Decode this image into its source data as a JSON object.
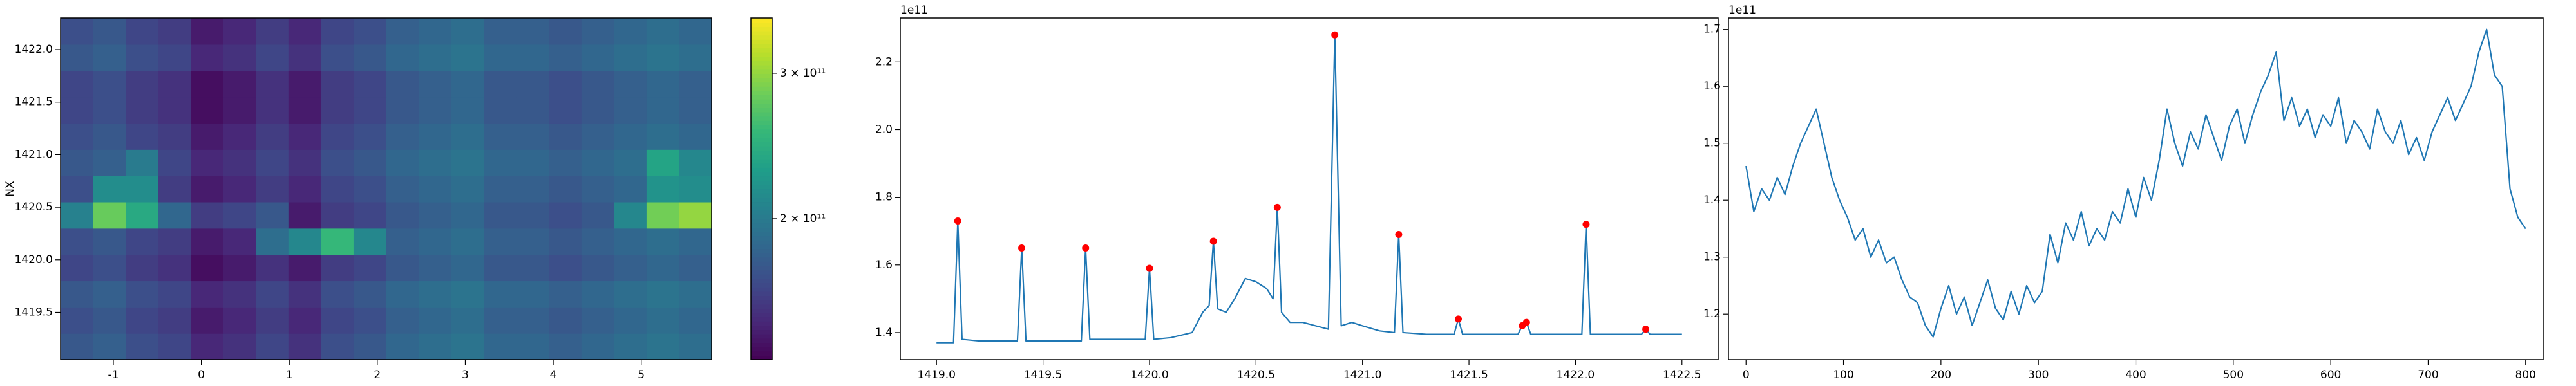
{
  "chart_data": [
    {
      "type": "heatmap",
      "ylabel": "NX",
      "xlim": [
        -1.6,
        5.8
      ],
      "ylim": [
        1419.05,
        1422.3
      ],
      "xticks": [
        -1,
        0,
        1,
        2,
        3,
        4,
        5
      ],
      "yticks": [
        1419.5,
        {
          "value": 1420,
          "label": "1420.0"
        },
        1420.5,
        {
          "value": 1421,
          "label": "1421.0"
        },
        1421.5,
        {
          "value": 1422,
          "label": "1422.0"
        }
      ],
      "x_edges": [
        -1.6,
        -1.23,
        -0.86,
        -0.49,
        -0.12,
        0.25,
        0.62,
        0.99,
        1.36,
        1.73,
        2.1,
        2.47,
        2.84,
        3.21,
        3.58,
        3.95,
        4.32,
        4.69,
        5.06,
        5.43,
        5.8
      ],
      "y_edges": [
        1419.05,
        1419.3,
        1419.55,
        1419.8,
        1420.05,
        1420.3,
        1420.55,
        1420.8,
        1421.05,
        1421.3,
        1421.55,
        1421.8,
        1422.05,
        1422.3
      ],
      "z": [
        [
          175000000000.0,
          180000000000.0,
          170000000000.0,
          165000000000.0,
          150000000000.0,
          155000000000.0,
          165000000000.0,
          155000000000.0,
          170000000000.0,
          175000000000.0,
          185000000000.0,
          190000000000.0,
          195000000000.0,
          185000000000.0,
          185000000000.0,
          180000000000.0,
          185000000000.0,
          190000000000.0,
          195000000000.0,
          190000000000.0
        ],
        [
          170000000000.0,
          175000000000.0,
          165000000000.0,
          160000000000.0,
          145000000000.0,
          150000000000.0,
          160000000000.0,
          150000000000.0,
          165000000000.0,
          170000000000.0,
          180000000000.0,
          185000000000.0,
          190000000000.0,
          180000000000.0,
          180000000000.0,
          175000000000.0,
          180000000000.0,
          185000000000.0,
          190000000000.0,
          185000000000.0
        ],
        [
          175000000000.0,
          180000000000.0,
          170000000000.0,
          165000000000.0,
          150000000000.0,
          155000000000.0,
          165000000000.0,
          155000000000.0,
          170000000000.0,
          175000000000.0,
          185000000000.0,
          190000000000.0,
          195000000000.0,
          185000000000.0,
          185000000000.0,
          180000000000.0,
          185000000000.0,
          190000000000.0,
          195000000000.0,
          190000000000.0
        ],
        [
          165000000000.0,
          170000000000.0,
          160000000000.0,
          155000000000.0,
          140000000000.0,
          145000000000.0,
          155000000000.0,
          145000000000.0,
          160000000000.0,
          165000000000.0,
          175000000000.0,
          180000000000.0,
          185000000000.0,
          175000000000.0,
          175000000000.0,
          170000000000.0,
          175000000000.0,
          180000000000.0,
          185000000000.0,
          180000000000.0
        ],
        [
          170000000000.0,
          175000000000.0,
          165000000000.0,
          160000000000.0,
          145000000000.0,
          150000000000.0,
          190000000000.0,
          210000000000.0,
          255000000000.0,
          210000000000.0,
          180000000000.0,
          185000000000.0,
          190000000000.0,
          180000000000.0,
          180000000000.0,
          175000000000.0,
          180000000000.0,
          185000000000.0,
          190000000000.0,
          185000000000.0
        ],
        [
          205000000000.0,
          280000000000.0,
          240000000000.0,
          185000000000.0,
          160000000000.0,
          165000000000.0,
          175000000000.0,
          145000000000.0,
          160000000000.0,
          165000000000.0,
          175000000000.0,
          180000000000.0,
          185000000000.0,
          175000000000.0,
          175000000000.0,
          170000000000.0,
          175000000000.0,
          210000000000.0,
          285000000000.0,
          300000000000.0
        ],
        [
          170000000000.0,
          215000000000.0,
          215000000000.0,
          160000000000.0,
          145000000000.0,
          150000000000.0,
          160000000000.0,
          150000000000.0,
          165000000000.0,
          170000000000.0,
          180000000000.0,
          185000000000.0,
          190000000000.0,
          180000000000.0,
          180000000000.0,
          175000000000.0,
          180000000000.0,
          185000000000.0,
          220000000000.0,
          215000000000.0
        ],
        [
          175000000000.0,
          180000000000.0,
          200000000000.0,
          165000000000.0,
          150000000000.0,
          155000000000.0,
          165000000000.0,
          155000000000.0,
          170000000000.0,
          175000000000.0,
          185000000000.0,
          190000000000.0,
          195000000000.0,
          185000000000.0,
          185000000000.0,
          180000000000.0,
          185000000000.0,
          190000000000.0,
          235000000000.0,
          210000000000.0
        ],
        [
          170000000000.0,
          175000000000.0,
          165000000000.0,
          160000000000.0,
          145000000000.0,
          150000000000.0,
          160000000000.0,
          150000000000.0,
          165000000000.0,
          170000000000.0,
          180000000000.0,
          185000000000.0,
          190000000000.0,
          180000000000.0,
          180000000000.0,
          175000000000.0,
          180000000000.0,
          185000000000.0,
          190000000000.0,
          185000000000.0
        ],
        [
          165000000000.0,
          170000000000.0,
          160000000000.0,
          155000000000.0,
          140000000000.0,
          145000000000.0,
          155000000000.0,
          145000000000.0,
          160000000000.0,
          165000000000.0,
          175000000000.0,
          180000000000.0,
          185000000000.0,
          175000000000.0,
          175000000000.0,
          170000000000.0,
          175000000000.0,
          180000000000.0,
          185000000000.0,
          180000000000.0
        ],
        [
          165000000000.0,
          170000000000.0,
          160000000000.0,
          155000000000.0,
          140000000000.0,
          145000000000.0,
          155000000000.0,
          145000000000.0,
          160000000000.0,
          165000000000.0,
          175000000000.0,
          180000000000.0,
          185000000000.0,
          175000000000.0,
          175000000000.0,
          170000000000.0,
          175000000000.0,
          180000000000.0,
          185000000000.0,
          180000000000.0
        ],
        [
          175000000000.0,
          180000000000.0,
          170000000000.0,
          165000000000.0,
          150000000000.0,
          155000000000.0,
          165000000000.0,
          155000000000.0,
          170000000000.0,
          175000000000.0,
          185000000000.0,
          190000000000.0,
          195000000000.0,
          185000000000.0,
          185000000000.0,
          180000000000.0,
          185000000000.0,
          190000000000.0,
          195000000000.0,
          190000000000.0
        ],
        [
          170000000000.0,
          175000000000.0,
          165000000000.0,
          160000000000.0,
          145000000000.0,
          150000000000.0,
          160000000000.0,
          150000000000.0,
          165000000000.0,
          170000000000.0,
          180000000000.0,
          185000000000.0,
          190000000000.0,
          180000000000.0,
          180000000000.0,
          175000000000.0,
          180000000000.0,
          185000000000.0,
          190000000000.0,
          185000000000.0
        ]
      ],
      "colorbar": {
        "log": true,
        "lim": [
          135000000000.0,
          350000000000.0
        ],
        "ticks": [
          {
            "value": 200000000000.0,
            "label": "2 × 10¹¹"
          },
          {
            "value": 300000000000.0,
            "label": "3 × 10¹¹"
          }
        ]
      }
    },
    {
      "type": "line",
      "offset": "1e11",
      "xlim": [
        1418.83,
        1422.67
      ],
      "ylim": [
        1.32,
        2.33
      ],
      "xticks": [
        {
          "value": 1419,
          "label": "1419.0"
        },
        1419.5,
        {
          "value": 1420,
          "label": "1420.0"
        },
        1420.5,
        {
          "value": 1421,
          "label": "1421.0"
        },
        1421.5,
        {
          "value": 1422,
          "label": "1422.0"
        },
        1422.5
      ],
      "yticks": [
        1.4,
        1.6,
        1.8,
        {
          "value": 2,
          "label": "2.0"
        },
        2.2
      ],
      "series": [
        {
          "mode": "line",
          "color": "#1f77b4",
          "x": [
            1419.0,
            1419.08,
            1419.1,
            1419.12,
            1419.2,
            1419.38,
            1419.4,
            1419.42,
            1419.6,
            1419.68,
            1419.7,
            1419.72,
            1419.9,
            1419.98,
            1420.0,
            1420.02,
            1420.1,
            1420.2,
            1420.25,
            1420.28,
            1420.3,
            1420.32,
            1420.36,
            1420.4,
            1420.45,
            1420.5,
            1420.55,
            1420.58,
            1420.6,
            1420.62,
            1420.66,
            1420.72,
            1420.78,
            1420.84,
            1420.87,
            1420.9,
            1420.95,
            1421.0,
            1421.08,
            1421.15,
            1421.17,
            1421.19,
            1421.3,
            1421.43,
            1421.45,
            1421.47,
            1421.6,
            1421.73,
            1421.75,
            1421.77,
            1421.79,
            1421.95,
            1422.03,
            1422.05,
            1422.07,
            1422.2,
            1422.31,
            1422.33,
            1422.35,
            1422.5
          ],
          "values": [
            1.37,
            1.37,
            1.73,
            1.38,
            1.375,
            1.375,
            1.65,
            1.375,
            1.375,
            1.375,
            1.65,
            1.38,
            1.38,
            1.38,
            1.59,
            1.38,
            1.385,
            1.4,
            1.46,
            1.48,
            1.67,
            1.47,
            1.46,
            1.5,
            1.56,
            1.55,
            1.53,
            1.5,
            1.77,
            1.46,
            1.43,
            1.43,
            1.42,
            1.41,
            2.28,
            1.42,
            1.43,
            1.42,
            1.405,
            1.4,
            1.69,
            1.4,
            1.395,
            1.395,
            1.44,
            1.395,
            1.395,
            1.395,
            1.42,
            1.43,
            1.395,
            1.395,
            1.395,
            1.72,
            1.395,
            1.395,
            1.395,
            1.41,
            1.395,
            1.395
          ]
        },
        {
          "mode": "markers",
          "color": "#ff0000",
          "x": [
            1419.1,
            1419.4,
            1419.7,
            1420.0,
            1420.3,
            1420.6,
            1420.87,
            1421.17,
            1421.45,
            1421.75,
            1421.77,
            1422.05,
            1422.33
          ],
          "values": [
            1.73,
            1.65,
            1.65,
            1.59,
            1.67,
            1.77,
            2.28,
            1.69,
            1.44,
            1.42,
            1.43,
            1.72,
            1.41
          ]
        }
      ]
    },
    {
      "type": "line",
      "offset": "1e11",
      "xlim": [
        -18,
        818
      ],
      "ylim": [
        1.12,
        1.72
      ],
      "xticks": [
        0,
        100,
        200,
        300,
        400,
        500,
        600,
        700,
        800
      ],
      "yticks": [
        1.2,
        1.3,
        1.4,
        1.5,
        1.6,
        1.7
      ],
      "series": [
        {
          "mode": "line",
          "color": "#1f77b4",
          "x": [
            0,
            8,
            16,
            24,
            32,
            40,
            48,
            56,
            64,
            72,
            80,
            88,
            96,
            104,
            112,
            120,
            128,
            136,
            144,
            152,
            160,
            168,
            176,
            184,
            192,
            200,
            208,
            216,
            224,
            232,
            240,
            248,
            256,
            264,
            272,
            280,
            288,
            296,
            304,
            312,
            320,
            328,
            336,
            344,
            352,
            360,
            368,
            376,
            384,
            392,
            400,
            408,
            416,
            424,
            432,
            440,
            448,
            456,
            464,
            472,
            480,
            488,
            496,
            504,
            512,
            520,
            528,
            536,
            544,
            552,
            560,
            568,
            576,
            584,
            592,
            600,
            608,
            616,
            624,
            632,
            640,
            648,
            656,
            664,
            672,
            680,
            688,
            696,
            704,
            712,
            720,
            728,
            736,
            744,
            752,
            760,
            768,
            776,
            784,
            792,
            800
          ],
          "values": [
            1.46,
            1.38,
            1.42,
            1.4,
            1.44,
            1.41,
            1.46,
            1.5,
            1.53,
            1.56,
            1.5,
            1.44,
            1.4,
            1.37,
            1.33,
            1.35,
            1.3,
            1.33,
            1.29,
            1.3,
            1.26,
            1.23,
            1.22,
            1.18,
            1.16,
            1.21,
            1.25,
            1.2,
            1.23,
            1.18,
            1.22,
            1.26,
            1.21,
            1.19,
            1.24,
            1.2,
            1.25,
            1.22,
            1.24,
            1.34,
            1.29,
            1.36,
            1.33,
            1.38,
            1.32,
            1.35,
            1.33,
            1.38,
            1.36,
            1.42,
            1.37,
            1.44,
            1.4,
            1.47,
            1.56,
            1.5,
            1.46,
            1.52,
            1.49,
            1.55,
            1.51,
            1.47,
            1.53,
            1.56,
            1.5,
            1.55,
            1.59,
            1.62,
            1.66,
            1.54,
            1.58,
            1.53,
            1.56,
            1.51,
            1.55,
            1.53,
            1.58,
            1.5,
            1.54,
            1.52,
            1.49,
            1.56,
            1.52,
            1.5,
            1.54,
            1.48,
            1.51,
            1.47,
            1.52,
            1.55,
            1.58,
            1.54,
            1.57,
            1.6,
            1.66,
            1.7,
            1.62,
            1.6,
            1.42,
            1.37,
            1.35
          ]
        }
      ]
    }
  ]
}
